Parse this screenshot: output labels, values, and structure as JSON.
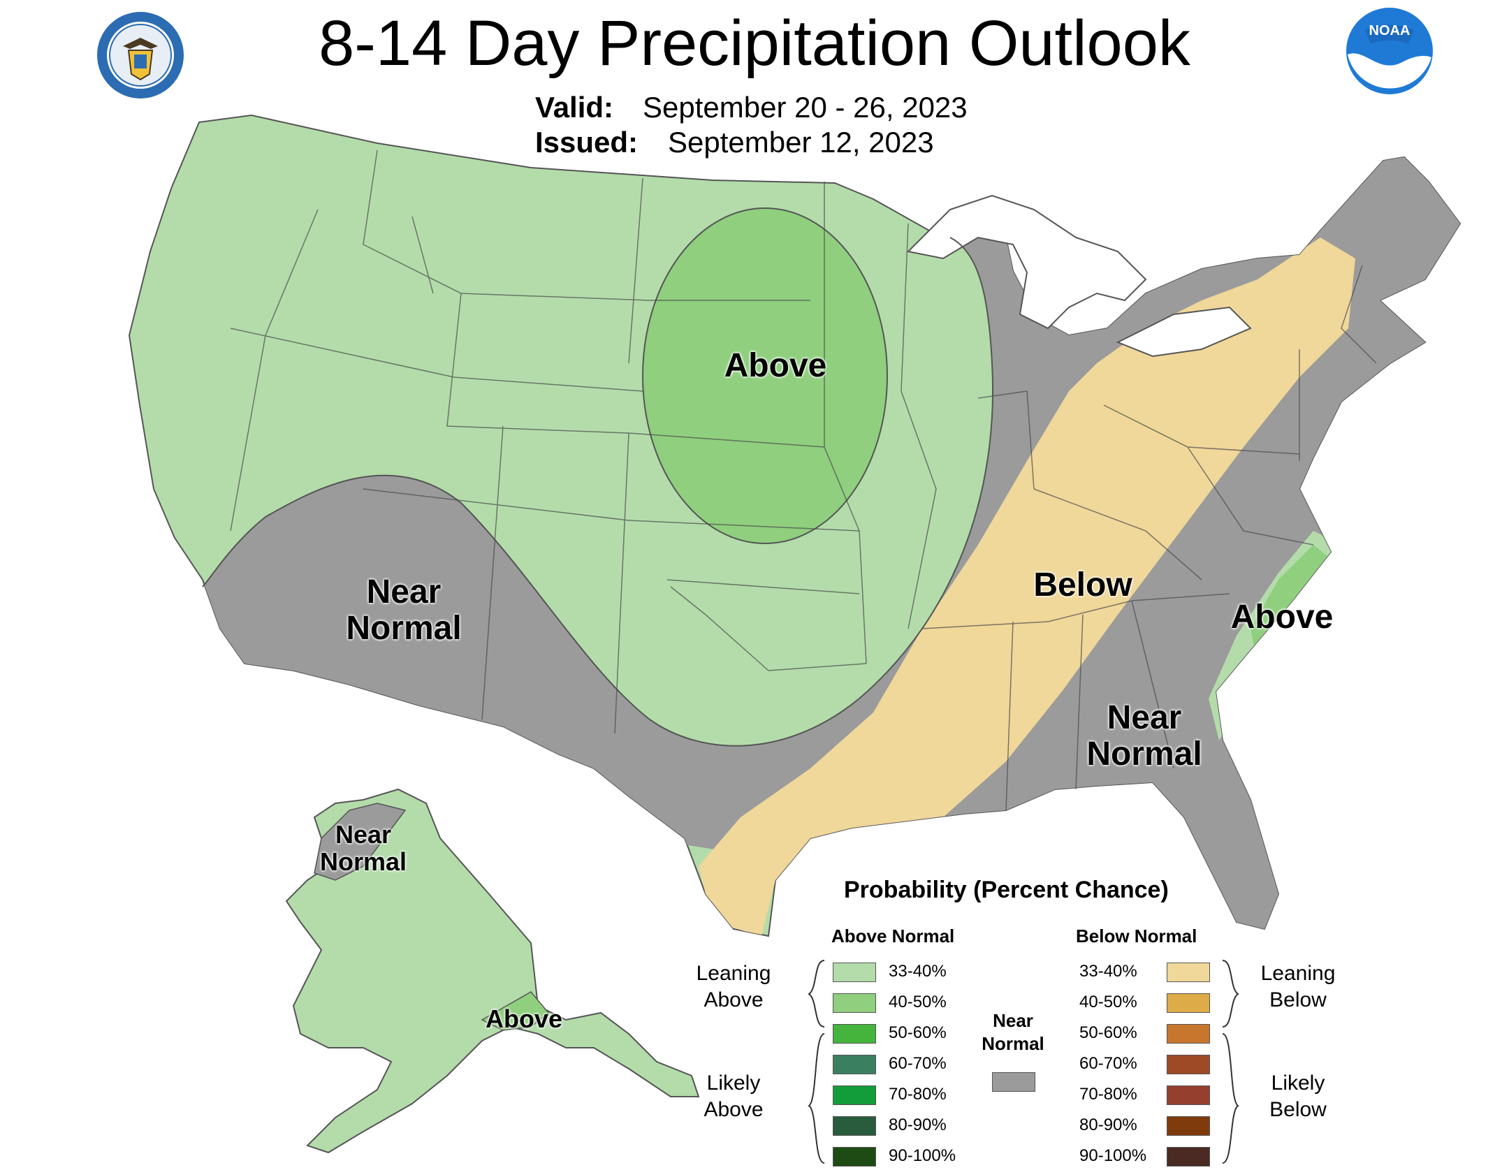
{
  "title": "8-14 Day Precipitation Outlook",
  "valid_label": "Valid:",
  "valid_value": "September 20 - 26, 2023",
  "issued_label": "Issued:",
  "issued_value": "September 12, 2023",
  "logos": {
    "left": "department-of-commerce-seal",
    "right": "NOAA"
  },
  "colors": {
    "above_33_40": "#b3dcaa",
    "above_40_50": "#8fcf7e",
    "near_normal": "#9b9b9b",
    "below_33_40": "#f0d79a",
    "land_outline": "#555555"
  },
  "map_labels": {
    "plains_above": "Above",
    "southwest_near_1": "Near",
    "southwest_near_2": "Normal",
    "ohio_below": "Below",
    "carolina_above": "Above",
    "southeast_near_1": "Near",
    "southeast_near_2": "Normal",
    "alaska_near_1": "Near",
    "alaska_near_2": "Normal",
    "alaska_above": "Above"
  },
  "legend": {
    "title": "Probability (Percent Chance)",
    "above_header": "Above Normal",
    "below_header": "Below Normal",
    "near_header_1": "Near",
    "near_header_2": "Normal",
    "leaning_above_1": "Leaning",
    "leaning_above_2": "Above",
    "likely_above_1": "Likely",
    "likely_above_2": "Above",
    "leaning_below_1": "Leaning",
    "leaning_below_2": "Below",
    "likely_below_1": "Likely",
    "likely_below_2": "Below",
    "above_bins": [
      {
        "label": "33-40%",
        "color": "#b3dcaa"
      },
      {
        "label": "40-50%",
        "color": "#8fcf7e"
      },
      {
        "label": "50-60%",
        "color": "#45b43c"
      },
      {
        "label": "60-70%",
        "color": "#3a8060"
      },
      {
        "label": "70-80%",
        "color": "#139c3a"
      },
      {
        "label": "80-90%",
        "color": "#285c3c"
      },
      {
        "label": "90-100%",
        "color": "#1e4a14"
      }
    ],
    "below_bins": [
      {
        "label": "33-40%",
        "color": "#f0d79a"
      },
      {
        "label": "40-50%",
        "color": "#ddab47"
      },
      {
        "label": "50-60%",
        "color": "#c8752e"
      },
      {
        "label": "60-70%",
        "color": "#9e4a27"
      },
      {
        "label": "70-80%",
        "color": "#95402e"
      },
      {
        "label": "80-90%",
        "color": "#803b0d"
      },
      {
        "label": "90-100%",
        "color": "#4a2a22"
      }
    ],
    "near_color": "#9b9b9b"
  }
}
